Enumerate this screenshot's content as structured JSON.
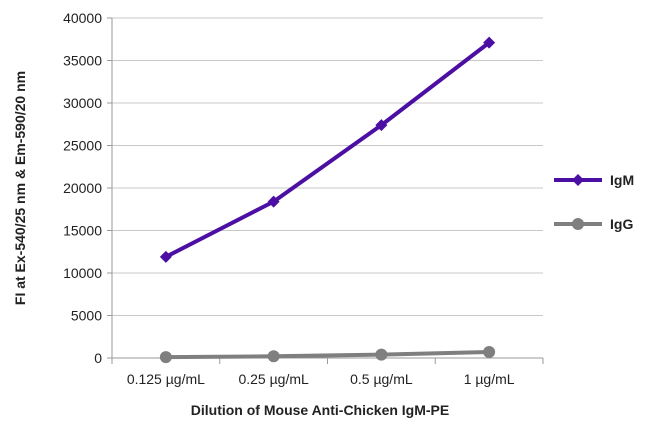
{
  "chart_data": {
    "type": "line",
    "title": "",
    "xlabel": "Dilution of Mouse Anti-Chicken IgM-PE",
    "ylabel": "FI at Ex-540/25 nm & Em-590/20 nm",
    "categories": [
      "0.125 µg/mL",
      "0.25 µg/mL",
      "0.5 µg/mL",
      "1 µg/mL"
    ],
    "ylim": [
      0,
      40000
    ],
    "yticks": [
      0,
      5000,
      10000,
      15000,
      20000,
      25000,
      30000,
      35000,
      40000
    ],
    "grid": true,
    "legend_position": "right",
    "series": [
      {
        "name": "IgM",
        "values": [
          11900,
          18400,
          27400,
          37100
        ],
        "color": "#4B0FA3",
        "marker": "diamond"
      },
      {
        "name": "IgG",
        "values": [
          100,
          200,
          400,
          700
        ],
        "color": "#7F7F7F",
        "marker": "circle"
      }
    ]
  }
}
